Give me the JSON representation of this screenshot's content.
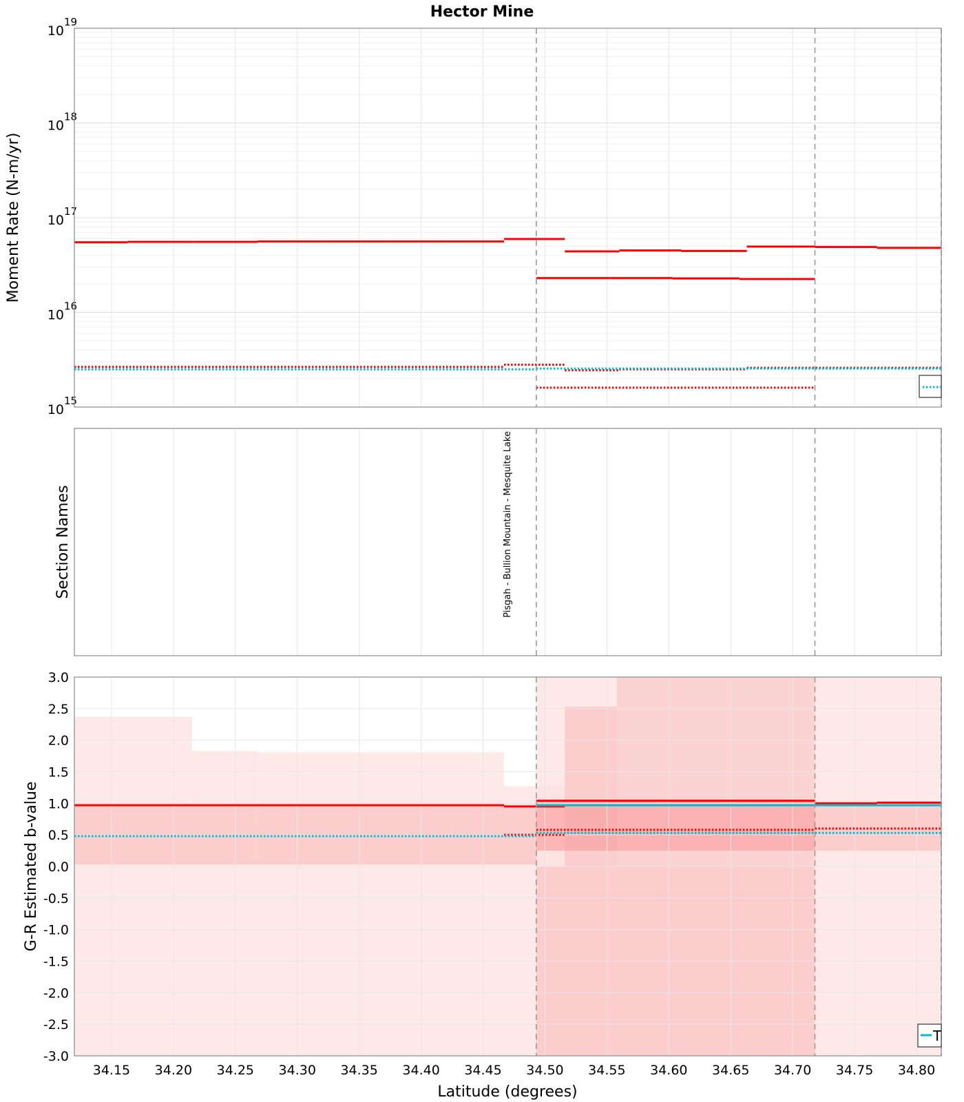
{
  "chart_data": {
    "title": "Hector Mine",
    "type": "line",
    "xlabel": "Latitude (degrees)",
    "xlim": [
      34.12,
      34.82
    ],
    "xticks": [
      "34.15",
      "34.20",
      "34.25",
      "34.30",
      "34.35",
      "34.40",
      "34.45",
      "34.50",
      "34.55",
      "34.60",
      "34.65",
      "34.70",
      "34.75",
      "34.80"
    ],
    "section_boundaries": [
      34.493,
      34.718,
      34.82
    ],
    "section_names": [
      {
        "x": 34.493,
        "name": "Pisgah - Bullion Mountain - Mesquite Lake"
      }
    ],
    "colors": {
      "red": "#ff0000",
      "cyan": "#00bcd4",
      "fill_light": "#fde0e0",
      "fill_mid": "#fbc0c0",
      "fill_dark": "#f9a3a3",
      "boundary": "#999999"
    },
    "panels": [
      {
        "id": "moment",
        "ylabel": "Moment Rate (N-m/yr)",
        "yscale": "log",
        "ylim_exp": [
          15,
          19
        ],
        "yticks": [
          {
            "base": "10",
            "exp": "15"
          },
          {
            "base": "10",
            "exp": "16"
          },
          {
            "base": "10",
            "exp": "17"
          },
          {
            "base": "10",
            "exp": "18"
          },
          {
            "base": "10",
            "exp": "19"
          }
        ],
        "series": [
          {
            "style": "solid",
            "color": "#ff0000",
            "segments": [
              [
                34.12,
                34.163,
                5.5e+16
              ],
              [
                34.163,
                34.216,
                5.55e+16
              ],
              [
                34.216,
                34.268,
                5.55e+16
              ],
              [
                34.268,
                34.32,
                5.6e+16
              ],
              [
                34.32,
                34.372,
                5.6e+16
              ],
              [
                34.372,
                34.42,
                5.6e+16
              ],
              [
                34.42,
                34.467,
                5.6e+16
              ],
              [
                34.467,
                34.516,
                5.95e+16
              ],
              [
                34.516,
                34.56,
                4.4e+16
              ],
              [
                34.56,
                34.61,
                4.5e+16
              ],
              [
                34.61,
                34.663,
                4.45e+16
              ],
              [
                34.663,
                34.718,
                4.95e+16
              ],
              [
                34.718,
                34.768,
                4.9e+16
              ],
              [
                34.768,
                34.82,
                4.8e+16
              ]
            ]
          },
          {
            "style": "solid",
            "color": "#ff0000",
            "segments": [
              [
                34.493,
                34.553,
                2.3e+16
              ],
              [
                34.553,
                34.603,
                2.3e+16
              ],
              [
                34.603,
                34.657,
                2.28e+16
              ],
              [
                34.657,
                34.718,
                2.25e+16
              ]
            ]
          },
          {
            "style": "dotted",
            "color": "#ff0000",
            "segments": [
              [
                34.12,
                34.467,
                2650000000000000.0
              ],
              [
                34.467,
                34.516,
                2800000000000000.0
              ],
              [
                34.516,
                34.56,
                2450000000000000.0
              ],
              [
                34.56,
                34.663,
                2500000000000000.0
              ],
              [
                34.663,
                34.82,
                2600000000000000.0
              ]
            ]
          },
          {
            "style": "dotted",
            "color": "#00bcd4",
            "segments": [
              [
                34.12,
                34.493,
                2500000000000000.0
              ],
              [
                34.493,
                34.82,
                2550000000000000.0
              ]
            ]
          },
          {
            "style": "dotted",
            "color": "#ff0000",
            "segments": [
              [
                34.493,
                34.718,
                1600000000000000.0
              ]
            ]
          }
        ]
      },
      {
        "id": "sections",
        "ylabel": "Section Names"
      },
      {
        "id": "bvalue",
        "ylabel": "G-R Estimated b-value",
        "ylim": [
          -3.0,
          3.0
        ],
        "yticks": [
          "3.0",
          "2.5",
          "2.0",
          "1.5",
          "1.0",
          "0.5",
          "0.0",
          "-0.5",
          "-1.0",
          "-1.5",
          "-2.0",
          "-2.5",
          "-3.0"
        ],
        "bands": [
          {
            "shade": "light",
            "x0": 34.12,
            "x1": 34.82,
            "y0": -3.0,
            "y1": 0.0
          },
          {
            "shade": "light",
            "x0": 34.12,
            "x1": 34.215,
            "y0": 0.0,
            "y1": 2.37
          },
          {
            "shade": "light",
            "x0": 34.215,
            "x1": 34.268,
            "y0": 0.0,
            "y1": 1.83
          },
          {
            "shade": "light",
            "x0": 34.268,
            "x1": 34.467,
            "y0": 0.0,
            "y1": 1.81
          },
          {
            "shade": "light",
            "x0": 34.467,
            "x1": 34.516,
            "y0": 0.0,
            "y1": 1.27
          },
          {
            "shade": "light",
            "x0": 34.493,
            "x1": 34.558,
            "y0": 0.0,
            "y1": 3.0
          },
          {
            "shade": "light",
            "x0": 34.718,
            "x1": 34.82,
            "y0": 0.0,
            "y1": 3.0
          },
          {
            "shade": "mid",
            "x0": 34.12,
            "x1": 34.493,
            "y0": 0.03,
            "y1": 0.97
          },
          {
            "shade": "mid",
            "x0": 34.493,
            "x1": 34.718,
            "y0": -3.0,
            "y1": 0.0
          },
          {
            "shade": "mid",
            "x0": 34.516,
            "x1": 34.558,
            "y0": 0.0,
            "y1": 2.53
          },
          {
            "shade": "mid",
            "x0": 34.558,
            "x1": 34.718,
            "y0": 0.0,
            "y1": 3.0
          },
          {
            "shade": "mid",
            "x0": 34.718,
            "x1": 34.82,
            "y0": 0.25,
            "y1": 1.0
          },
          {
            "shade": "dark",
            "x0": 34.493,
            "x1": 34.718,
            "y0": 0.25,
            "y1": 1.05
          }
        ],
        "series": [
          {
            "style": "solid",
            "color": "#ff0000",
            "segments": [
              [
                34.12,
                34.467,
                0.97
              ],
              [
                34.467,
                34.516,
                0.95
              ],
              [
                34.493,
                34.718,
                1.04
              ],
              [
                34.718,
                34.768,
                1.0
              ],
              [
                34.768,
                34.82,
                1.01
              ]
            ]
          },
          {
            "style": "solid",
            "color": "#00bcd4",
            "segments": [
              [
                34.493,
                34.82,
                0.97
              ]
            ]
          },
          {
            "style": "dotted",
            "color": "#ff0000",
            "segments": [
              [
                34.12,
                34.467,
                0.48
              ],
              [
                34.467,
                34.516,
                0.5
              ],
              [
                34.493,
                34.718,
                0.58
              ],
              [
                34.718,
                34.82,
                0.6
              ]
            ]
          },
          {
            "style": "dotted",
            "color": "#00bcd4",
            "segments": [
              [
                34.12,
                34.493,
                0.48
              ],
              [
                34.493,
                34.82,
                0.53
              ]
            ]
          }
        ]
      }
    ],
    "legend": {
      "placement": "bottom-right",
      "visible_text": "T"
    }
  }
}
